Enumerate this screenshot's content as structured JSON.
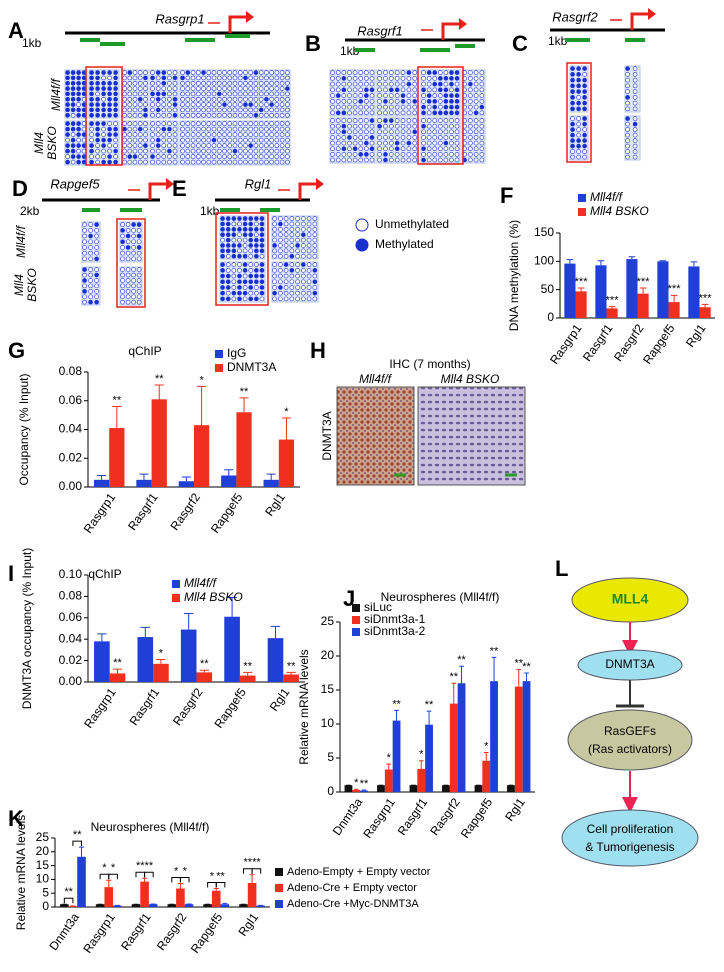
{
  "methylation": [
    {
      "letter": "A",
      "gene": "Rasgrp1",
      "scale": "1kb"
    },
    {
      "letter": "B",
      "gene": "Rasgrf1",
      "scale": "1kb"
    },
    {
      "letter": "C",
      "gene": "Rasgrf2",
      "scale": "1kb"
    },
    {
      "letter": "D",
      "gene": "Rapgef5",
      "scale": "2kb"
    },
    {
      "letter": "E",
      "gene": "Rgl1",
      "scale": "1kb"
    }
  ],
  "genotypes": {
    "control": "Mll4f/f",
    "ko_top": "Mll4",
    "ko_bottom": "BSKO"
  },
  "methylation_legend": [
    "Unmethylated",
    "Methylated"
  ],
  "ihc": {
    "letter": "H",
    "title": "IHC (7 months)",
    "columns": [
      "Mll4f/f",
      "Mll4 BSKO"
    ],
    "row": "DNMT3A"
  },
  "pathway": {
    "letter": "L",
    "nodes": [
      "MLL4",
      "DNMT3A",
      "RasGEFs",
      "(Ras activators)",
      "Cell proliferation",
      "& Tumorigenesis"
    ]
  },
  "chart_data": [
    {
      "type": "bar",
      "panel": "F",
      "ylabel": "DNA methylation (%)",
      "categories": [
        "Rasgrp1",
        "Rasgrf1",
        "Rasgrf2",
        "Rapgef5",
        "Rgl1"
      ],
      "series": [
        {
          "name": "Mll4f/f",
          "color": "#1f3fd6",
          "values": [
            96,
            93,
            104,
            100,
            91
          ],
          "errors": [
            7,
            8,
            4,
            1,
            8
          ],
          "annotations": [
            null,
            null,
            null,
            null,
            null
          ]
        },
        {
          "name": "Mll4 BSKO",
          "color": "#f0301e",
          "values": [
            47,
            17,
            43,
            28,
            19
          ],
          "errors": [
            6,
            3,
            10,
            12,
            5
          ],
          "annotations": [
            "***",
            "***",
            "***",
            "***",
            "***"
          ]
        }
      ],
      "ylim": [
        0,
        150
      ],
      "yticks": [
        0,
        50,
        100,
        150
      ]
    },
    {
      "type": "bar",
      "panel": "G",
      "title": "qChIP",
      "ylabel": "Occupancy (% Input)",
      "categories": [
        "Rasgrp1",
        "Rasgrf1",
        "Rasgrf2",
        "Rapgef5",
        "Rgl1"
      ],
      "series": [
        {
          "name": "IgG",
          "color": "#1f3fd6",
          "values": [
            0.005,
            0.005,
            0.004,
            0.008,
            0.005
          ],
          "errors": [
            0.003,
            0.004,
            0.003,
            0.004,
            0.004
          ],
          "annotations": [
            null,
            null,
            null,
            null,
            null
          ]
        },
        {
          "name": "DNMT3A",
          "color": "#f0301e",
          "values": [
            0.041,
            0.061,
            0.043,
            0.052,
            0.033
          ],
          "errors": [
            0.015,
            0.01,
            0.027,
            0.01,
            0.015
          ],
          "annotations": [
            "**",
            "**",
            "*",
            "**",
            "*"
          ]
        }
      ],
      "ylim": [
        0,
        0.08
      ],
      "yticks": [
        {
          "value": 0,
          "label": "0.00"
        },
        0.02,
        0.04,
        0.06,
        0.08
      ]
    },
    {
      "type": "bar",
      "panel": "I",
      "title": "qChIP",
      "ylabel": "DNMT3A occupancy (% Input)",
      "categories": [
        "Rasgrp1",
        "Rasgrf1",
        "Rasgrf2",
        "Rapgef5",
        "Rgl1"
      ],
      "series": [
        {
          "name": "Mll4f/f",
          "color": "#1f3fd6",
          "values": [
            0.038,
            0.042,
            0.049,
            0.061,
            0.041
          ],
          "errors": [
            0.007,
            0.009,
            0.015,
            0.018,
            0.011
          ],
          "annotations": [
            null,
            null,
            null,
            null,
            null
          ]
        },
        {
          "name": "Mll4 BSKO",
          "color": "#f0301e",
          "values": [
            0.008,
            0.017,
            0.009,
            0.006,
            0.007
          ],
          "errors": [
            0.004,
            0.004,
            0.002,
            0.003,
            0.002
          ],
          "annotations": [
            "**",
            "*",
            "**",
            "**",
            "**"
          ]
        }
      ],
      "ylim": [
        0,
        0.1
      ],
      "yticks": [
        {
          "value": 0,
          "label": "0.00"
        },
        0.02,
        0.04,
        0.06,
        0.08,
        {
          "value": 0.1,
          "label": "0.10"
        }
      ]
    },
    {
      "type": "bar",
      "panel": "J",
      "title": "Neurospheres (Mll4f/f)",
      "ylabel": "Relative mRNA levels",
      "categories": [
        "Dnmt3a",
        "Rasgrp1",
        "Rasgrf1",
        "Rasgrf2",
        "Rapgef5",
        "Rgl1"
      ],
      "series": [
        {
          "name": "siLuc",
          "color": "#111111",
          "values": [
            1,
            1,
            1,
            1,
            1,
            1
          ],
          "errors": [
            0,
            0,
            0,
            0,
            0,
            0
          ],
          "annotations": [
            null,
            null,
            null,
            null,
            null,
            null
          ]
        },
        {
          "name": "siDnmt3a-1",
          "color": "#f0301e",
          "values": [
            0.3,
            3.3,
            3.4,
            13,
            4.6,
            15.5
          ],
          "errors": [
            0.1,
            0.8,
            1.2,
            3,
            1.2,
            2.5
          ],
          "annotations": [
            "*",
            "*",
            "*",
            "**",
            "*",
            "**"
          ]
        },
        {
          "name": "siDnmt3a-2",
          "color": "#1f3fd6",
          "values": [
            0.2,
            10.5,
            9.9,
            16,
            16.3,
            16.3
          ],
          "errors": [
            0.1,
            1.5,
            2,
            2.5,
            3.5,
            1.2
          ],
          "annotations": [
            "**",
            "**",
            "**",
            "**",
            "**",
            "**"
          ]
        }
      ],
      "ylim": [
        0,
        25
      ],
      "yticks": [
        0,
        5,
        10,
        15,
        20,
        25
      ]
    },
    {
      "type": "bar",
      "panel": "K",
      "title": "Neurospheres (Mll4f/f)",
      "ylabel": "Relative mRNA levels",
      "categories": [
        "Dnmt3a",
        "Rasgrp1",
        "Rasgrf1",
        "Rasgrf2",
        "Rapgef5",
        "Rgl1"
      ],
      "series": [
        {
          "name": "Adeno-Empty + Empty vector",
          "color": "#111111",
          "values": [
            1,
            1,
            1,
            1,
            1,
            1
          ],
          "errors": [
            0,
            0,
            0,
            0,
            0,
            0
          ]
        },
        {
          "name": "Adeno-Cre + Empty vector",
          "color": "#f0301e",
          "values": [
            0.3,
            7.2,
            9.2,
            6.7,
            5.9,
            8.7
          ],
          "errors": [
            0.1,
            2.5,
            1.2,
            1.8,
            0.8,
            3
          ]
        },
        {
          "name": "Adeno-Cre +Myc-DNMT3A",
          "color": "#1f3fd6",
          "values": [
            18.2,
            0.5,
            1,
            1,
            1,
            0.5
          ],
          "errors": [
            3.5,
            0.1,
            0.1,
            0.1,
            0.3,
            0.1
          ]
        }
      ],
      "brackets": {
        "first_pair": [
          "**",
          "*",
          "**",
          "*",
          "*",
          "**"
        ],
        "second_pair": [
          "**",
          "*",
          "**",
          "*",
          "**",
          "**"
        ]
      },
      "ylim": [
        0,
        25
      ],
      "yticks": [
        0,
        5,
        10,
        15,
        20,
        25
      ]
    }
  ]
}
